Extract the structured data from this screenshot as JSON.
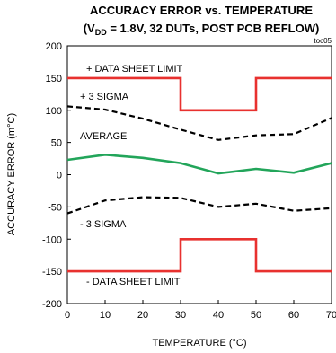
{
  "chart_data": {
    "type": "line",
    "title": "ACCURACY ERROR vs. TEMPERATURE",
    "subtitle_prefix": "(V",
    "subtitle_sub": "DD",
    "subtitle_rest": " = 1.8V, 32 DUTs, POST PCB REFLOW)",
    "figure_id": "toc05",
    "xlabel": "TEMPERATURE (°C)",
    "ylabel": "ACCURACY ERROR (m°C)",
    "xlim": [
      0,
      70
    ],
    "ylim": [
      -200,
      200
    ],
    "x_ticks": [
      "0",
      "10",
      "20",
      "30",
      "40",
      "50",
      "60",
      "70"
    ],
    "y_ticks": [
      "200",
      "150",
      "100",
      "50",
      "0",
      "-50",
      "-100",
      "-150",
      "-200"
    ],
    "grid": false,
    "series": [
      {
        "name": "+ DATA SHEET LIMIT",
        "color": "#e8312f",
        "style": "solid",
        "x": [
          0,
          30,
          30,
          50,
          50,
          70
        ],
        "y": [
          150,
          150,
          100,
          100,
          150,
          150
        ]
      },
      {
        "name": "+ 3 SIGMA",
        "color": "#000000",
        "style": "dashed",
        "x": [
          0,
          10,
          20,
          30,
          40,
          50,
          60,
          70
        ],
        "y": [
          106,
          101,
          87,
          70,
          54,
          61,
          63,
          88
        ]
      },
      {
        "name": "AVERAGE",
        "color": "#22a55a",
        "style": "solid",
        "x": [
          0,
          10,
          20,
          30,
          40,
          50,
          60,
          70
        ],
        "y": [
          23,
          31,
          26,
          18,
          2,
          9,
          3,
          18
        ]
      },
      {
        "name": "- 3 SIGMA",
        "color": "#000000",
        "style": "dashed",
        "x": [
          0,
          10,
          20,
          30,
          40,
          50,
          60,
          70
        ],
        "y": [
          -60,
          -40,
          -35,
          -36,
          -50,
          -45,
          -56,
          -52
        ]
      },
      {
        "name": "- DATA SHEET LIMIT",
        "color": "#e8312f",
        "style": "solid",
        "x": [
          0,
          30,
          30,
          50,
          50,
          70
        ],
        "y": [
          -150,
          -150,
          -100,
          -100,
          -150,
          -150
        ]
      }
    ]
  }
}
